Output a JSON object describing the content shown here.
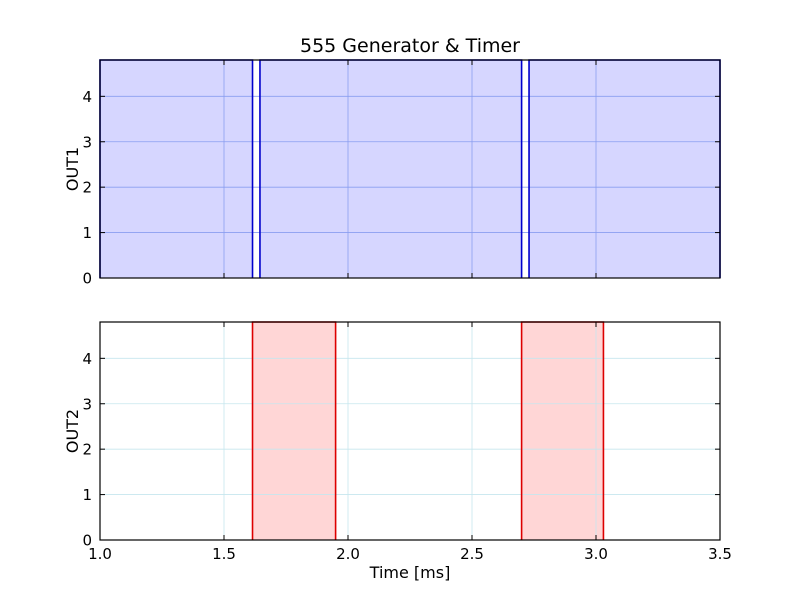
{
  "chart_data": {
    "title": "555 Generator & Timer",
    "xlabel": "Time [ms]",
    "xlim": [
      1.0,
      3.5
    ],
    "xticks": [
      "1.0",
      "1.5",
      "2.0",
      "2.5",
      "3.0",
      "3.5"
    ],
    "grid": true,
    "panels": [
      {
        "type": "area",
        "ylabel": "OUT1",
        "ylim": [
          0,
          4.8
        ],
        "yticks": [
          "0",
          "1",
          "2",
          "3",
          "4"
        ],
        "line_color": "#0000cc",
        "fill_color": "#d6d6ff",
        "grid_color": "#8a9ef0",
        "segments": [
          {
            "x0": 1.0,
            "x1": 1.615,
            "y": 4.8
          },
          {
            "x0": 1.645,
            "x1": 2.7,
            "y": 4.8
          },
          {
            "x0": 2.73,
            "x1": 3.5,
            "y": 4.8
          }
        ]
      },
      {
        "type": "area",
        "ylabel": "OUT2",
        "ylim": [
          0,
          4.8
        ],
        "yticks": [
          "0",
          "1",
          "2",
          "3",
          "4"
        ],
        "line_color": "#dd0000",
        "fill_color": "#ffd6d6",
        "grid_color": "#c6e6ee",
        "segments": [
          {
            "x0": 1.615,
            "x1": 1.95,
            "y": 4.8
          },
          {
            "x0": 2.7,
            "x1": 3.03,
            "y": 4.8
          }
        ]
      }
    ]
  }
}
